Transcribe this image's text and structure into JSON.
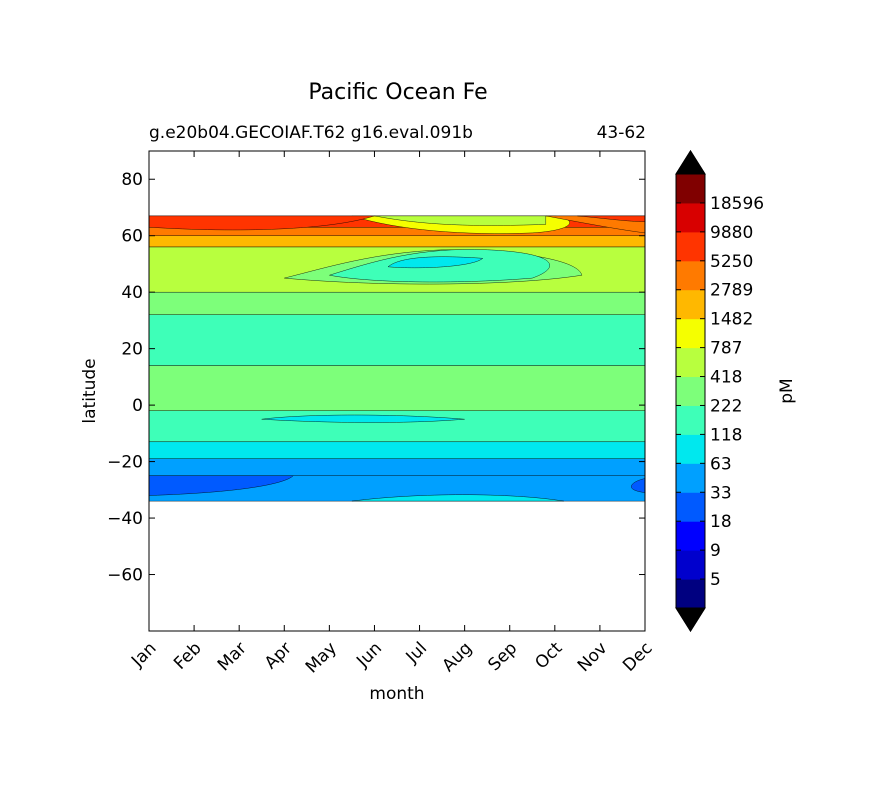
{
  "chart_data": {
    "type": "contour",
    "title": "Pacific Ocean Fe",
    "subtitle_left": "g.e20b04.GECOIAF.T62 g16.eval.091b",
    "subtitle_right": "43-62",
    "xlabel": "month",
    "ylabel": "latitude",
    "x_ticks": [
      "Jan",
      "Feb",
      "Mar",
      "Apr",
      "May",
      "Jun",
      "Jul",
      "Aug",
      "Sep",
      "Oct",
      "Nov",
      "Dec"
    ],
    "y_ticks": [
      80,
      60,
      40,
      20,
      0,
      -20,
      -40,
      -60
    ],
    "y_tick_labels": [
      "80",
      "60",
      "40",
      "20",
      "0",
      "−20",
      "−40",
      "−60"
    ],
    "ylim": [
      -80,
      90
    ],
    "data_lat_range": [
      -34,
      67
    ],
    "colorbar": {
      "label": "pM",
      "tick_labels": [
        "5",
        "9",
        "18",
        "33",
        "63",
        "118",
        "222",
        "418",
        "787",
        "1482",
        "2789",
        "5250",
        "9880",
        "18596"
      ],
      "colors": [
        "#000080",
        "#0000cd",
        "#0000ff",
        "#005aff",
        "#00a0ff",
        "#00e8ee",
        "#3effb8",
        "#7dff7a",
        "#b8ff3e",
        "#f5ff00",
        "#ffb800",
        "#ff7a00",
        "#ff3400",
        "#d80000",
        "#800000"
      ],
      "extend_min_color": "#000000",
      "extend_max_color": "#000000"
    },
    "bands": [
      {
        "lat_top": 67,
        "lat_bottom": 63,
        "color": "#ff3400",
        "approx_value": "5250-9880"
      },
      {
        "lat_top": 63,
        "lat_bottom": 60,
        "color": "#ff7a00",
        "approx_value": "2789-5250"
      },
      {
        "lat_top": 60,
        "lat_bottom": 56,
        "color": "#ffb800",
        "approx_value": "1482-2789"
      },
      {
        "lat_top": 56,
        "lat_bottom": 40,
        "color": "#b8ff3e",
        "approx_value": "418-787"
      },
      {
        "lat_top": 40,
        "lat_bottom": 32,
        "color": "#7dff7a",
        "approx_value": "222-418"
      },
      {
        "lat_top": 32,
        "lat_bottom": 14,
        "color": "#3effb8",
        "approx_value": "118-222"
      },
      {
        "lat_top": 14,
        "lat_bottom": -2,
        "color": "#7dff7a",
        "approx_value": "222-418"
      },
      {
        "lat_top": -2,
        "lat_bottom": -13,
        "color": "#3effb8",
        "approx_value": "118-222"
      },
      {
        "lat_top": -13,
        "lat_bottom": -19,
        "color": "#00e8ee",
        "approx_value": "63-118"
      },
      {
        "lat_top": -19,
        "lat_bottom": -25,
        "color": "#00a0ff",
        "approx_value": "33-63"
      },
      {
        "lat_top": -25,
        "lat_bottom": -34,
        "color": "#00a0ff",
        "approx_value": "33-63"
      }
    ]
  }
}
